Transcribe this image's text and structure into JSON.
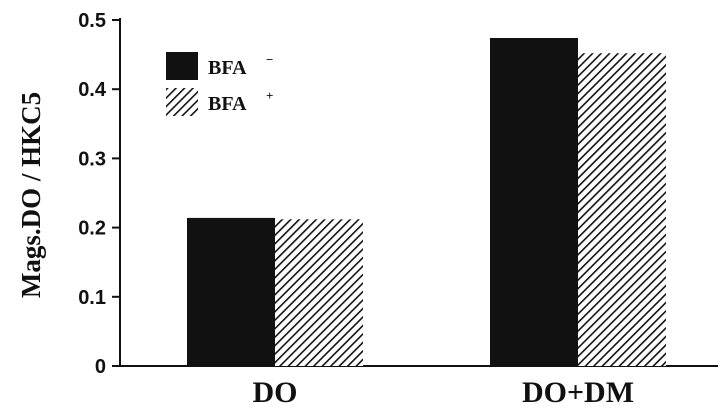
{
  "chart_data": {
    "type": "bar",
    "categories": [
      "DO",
      "DO+DM"
    ],
    "series": [
      {
        "name": "BFA",
        "name_sup": "−",
        "pattern": "solid",
        "values": [
          0.214,
          0.474
        ]
      },
      {
        "name": "BFA",
        "name_sup": "+",
        "pattern": "hatched",
        "values": [
          0.212,
          0.452
        ]
      }
    ],
    "ylabel": "Mags.DO / HKC5",
    "xlabel": "",
    "ylim": [
      0,
      0.5
    ],
    "yticks": [
      0,
      0.1,
      0.2,
      0.3,
      0.4,
      0.5
    ],
    "ytick_labels": [
      "0",
      "0.1",
      "0.2",
      "0.3",
      "0.4",
      "0.5"
    ],
    "legend_position": "top-left",
    "grid": false,
    "colors": {
      "solid": "#111111",
      "hatch": "#111111",
      "background": "#ffffff"
    }
  }
}
